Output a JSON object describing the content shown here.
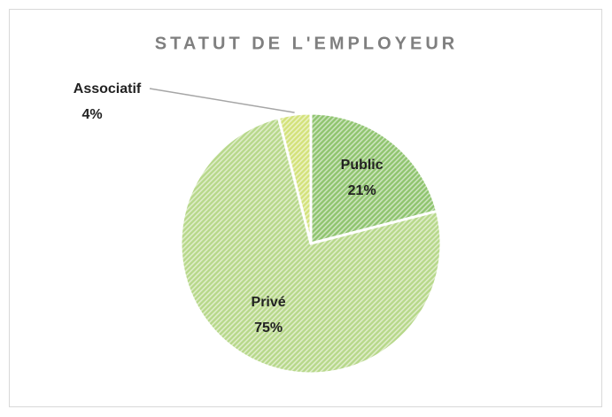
{
  "chart_data": {
    "type": "pie",
    "title": "STATUT DE L'EMPLOYEUR",
    "categories": [
      "Public",
      "Privé",
      "Associatif"
    ],
    "values": [
      21,
      75,
      4
    ],
    "value_labels": [
      "21%",
      "75%",
      "4%"
    ],
    "colors": [
      "#8fc46e",
      "#b7d88a",
      "#d3e27a"
    ]
  }
}
